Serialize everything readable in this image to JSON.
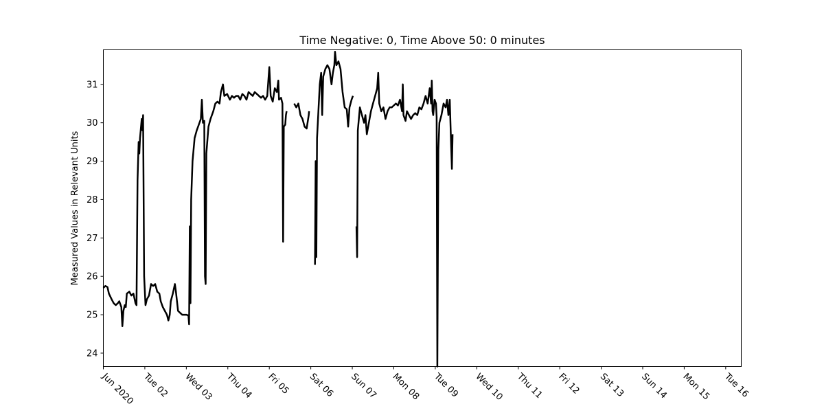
{
  "chart_data": {
    "type": "line",
    "title": "Time Negative: 0, Time Above 50: 0 minutes",
    "xlabel": "",
    "ylabel": "Measured Values in Relevant Units",
    "xlim": [
      "2020-06-01T00:00",
      "2020-06-16T09:00"
    ],
    "ylim": [
      23.65,
      31.9
    ],
    "grid": false,
    "legend": "none",
    "line_color": "#000000",
    "y_ticks": [
      24,
      25,
      26,
      27,
      28,
      29,
      30,
      31
    ],
    "x_ticks": [
      {
        "x": "2020-06-01T00:00",
        "label": "Jun 2020"
      },
      {
        "x": "2020-06-02T00:00",
        "label": "Tue 02"
      },
      {
        "x": "2020-06-03T00:00",
        "label": "Wed 03"
      },
      {
        "x": "2020-06-04T00:00",
        "label": "Thu 04"
      },
      {
        "x": "2020-06-05T00:00",
        "label": "Fri 05"
      },
      {
        "x": "2020-06-06T00:00",
        "label": "Sat 06"
      },
      {
        "x": "2020-06-07T00:00",
        "label": "Sun 07"
      },
      {
        "x": "2020-06-08T00:00",
        "label": "Mon 08"
      },
      {
        "x": "2020-06-09T00:00",
        "label": "Tue 09"
      },
      {
        "x": "2020-06-10T00:00",
        "label": "Wed 10"
      },
      {
        "x": "2020-06-11T00:00",
        "label": "Thu 11"
      },
      {
        "x": "2020-06-12T00:00",
        "label": "Fri 12"
      },
      {
        "x": "2020-06-13T00:00",
        "label": "Sat 13"
      },
      {
        "x": "2020-06-14T00:00",
        "label": "Sun 14"
      },
      {
        "x": "2020-06-15T00:00",
        "label": "Mon 15"
      },
      {
        "x": "2020-06-16T00:00",
        "label": "Tue 16"
      }
    ],
    "series": [
      {
        "points": [
          [
            "2020-06-01T00:00",
            25.7
          ],
          [
            "2020-06-01T01:12",
            25.75
          ],
          [
            "2020-06-01T02:24",
            25.72
          ],
          [
            "2020-06-01T03:12",
            25.55
          ],
          [
            "2020-06-01T04:48",
            25.4
          ],
          [
            "2020-06-01T06:00",
            25.3
          ],
          [
            "2020-06-01T07:12",
            25.25
          ],
          [
            "2020-06-01T08:24",
            25.3
          ],
          [
            "2020-06-01T09:12",
            25.35
          ],
          [
            "2020-06-01T10:24",
            25.2
          ],
          [
            "2020-06-01T11:00",
            24.7
          ],
          [
            "2020-06-01T11:36",
            25.1
          ],
          [
            "2020-06-01T12:24",
            25.25
          ],
          [
            "2020-06-01T13:00",
            25.2
          ],
          [
            "2020-06-01T13:36",
            25.55
          ],
          [
            "2020-06-01T15:00",
            25.6
          ],
          [
            "2020-06-01T16:12",
            25.5
          ],
          [
            "2020-06-01T17:24",
            25.55
          ],
          [
            "2020-06-01T18:36",
            25.3
          ],
          [
            "2020-06-01T19:12",
            25.25
          ],
          [
            "2020-06-01T19:48",
            28.5
          ],
          [
            "2020-06-01T20:24",
            29.5
          ],
          [
            "2020-06-01T20:48",
            29.2
          ],
          [
            "2020-06-01T21:12",
            29.6
          ],
          [
            "2020-06-01T21:48",
            29.9
          ],
          [
            "2020-06-01T22:12",
            30.1
          ],
          [
            "2020-06-01T22:36",
            29.8
          ],
          [
            "2020-06-01T23:00",
            30.2
          ],
          [
            "2020-06-01T23:36",
            26.0
          ],
          [
            "2020-06-02T00:24",
            25.25
          ],
          [
            "2020-06-02T01:12",
            25.4
          ],
          [
            "2020-06-02T02:24",
            25.5
          ],
          [
            "2020-06-02T03:36",
            25.8
          ],
          [
            "2020-06-02T04:48",
            25.75
          ],
          [
            "2020-06-02T06:00",
            25.8
          ],
          [
            "2020-06-02T07:12",
            25.6
          ],
          [
            "2020-06-02T08:24",
            25.55
          ],
          [
            "2020-06-02T09:12",
            25.35
          ],
          [
            "2020-06-02T10:24",
            25.2
          ],
          [
            "2020-06-02T11:36",
            25.1
          ],
          [
            "2020-06-02T12:48",
            25.0
          ],
          [
            "2020-06-02T13:36",
            24.85
          ],
          [
            "2020-06-02T14:24",
            25.0
          ],
          [
            "2020-06-02T15:00",
            25.35
          ],
          [
            "2020-06-02T16:12",
            25.55
          ],
          [
            "2020-06-02T17:24",
            25.8
          ],
          [
            "2020-06-02T18:00",
            25.6
          ],
          [
            "2020-06-02T19:12",
            25.1
          ],
          [
            "2020-06-02T20:24",
            25.05
          ],
          [
            "2020-06-02T21:36",
            25.0
          ],
          [
            "2020-06-02T22:48",
            25.0
          ],
          [
            "2020-06-03T00:00",
            25.0
          ],
          [
            "2020-06-03T01:12",
            24.98
          ],
          [
            "2020-06-03T01:36",
            24.75
          ],
          [
            "2020-06-03T02:00",
            27.3
          ],
          [
            "2020-06-03T02:24",
            25.3
          ],
          [
            "2020-06-03T02:48",
            28.0
          ],
          [
            "2020-06-03T03:36",
            29.0
          ],
          [
            "2020-06-03T04:48",
            29.6
          ],
          [
            "2020-06-03T06:00",
            29.8
          ],
          [
            "2020-06-03T07:12",
            29.95
          ],
          [
            "2020-06-03T08:24",
            30.1
          ],
          [
            "2020-06-03T09:00",
            30.6
          ],
          [
            "2020-06-03T09:36",
            30.0
          ],
          [
            "2020-06-03T10:24",
            30.05
          ],
          [
            "2020-06-03T10:48",
            26.0
          ],
          [
            "2020-06-03T11:12",
            25.8
          ],
          [
            "2020-06-03T11:36",
            29.2
          ],
          [
            "2020-06-03T12:48",
            29.9
          ],
          [
            "2020-06-03T14:00",
            30.1
          ],
          [
            "2020-06-03T15:36",
            30.3
          ],
          [
            "2020-06-03T16:48",
            30.5
          ],
          [
            "2020-06-03T18:00",
            30.55
          ],
          [
            "2020-06-03T19:12",
            30.5
          ],
          [
            "2020-06-03T20:00",
            30.8
          ],
          [
            "2020-06-03T21:12",
            31.0
          ],
          [
            "2020-06-03T22:00",
            30.7
          ],
          [
            "2020-06-03T23:36",
            30.75
          ],
          [
            "2020-06-04T01:12",
            30.6
          ],
          [
            "2020-06-04T02:24",
            30.7
          ],
          [
            "2020-06-04T03:36",
            30.65
          ],
          [
            "2020-06-04T04:48",
            30.7
          ],
          [
            "2020-06-04T06:00",
            30.7
          ],
          [
            "2020-06-04T07:12",
            30.6
          ],
          [
            "2020-06-04T08:24",
            30.75
          ],
          [
            "2020-06-04T09:36",
            30.7
          ],
          [
            "2020-06-04T10:48",
            30.6
          ],
          [
            "2020-06-04T12:00",
            30.8
          ],
          [
            "2020-06-04T13:12",
            30.75
          ],
          [
            "2020-06-04T14:24",
            30.7
          ],
          [
            "2020-06-04T15:36",
            30.8
          ],
          [
            "2020-06-04T16:48",
            30.75
          ],
          [
            "2020-06-04T18:00",
            30.7
          ],
          [
            "2020-06-04T19:12",
            30.65
          ],
          [
            "2020-06-04T20:24",
            30.7
          ],
          [
            "2020-06-04T21:36",
            30.6
          ],
          [
            "2020-06-04T22:48",
            30.7
          ],
          [
            "2020-06-05T00:00",
            31.45
          ],
          [
            "2020-06-05T00:48",
            30.7
          ],
          [
            "2020-06-05T02:00",
            30.55
          ],
          [
            "2020-06-05T03:12",
            30.9
          ],
          [
            "2020-06-05T04:24",
            30.8
          ],
          [
            "2020-06-05T05:12",
            31.1
          ],
          [
            "2020-06-05T05:36",
            30.6
          ],
          [
            "2020-06-05T06:48",
            30.65
          ],
          [
            "2020-06-05T07:36",
            30.5
          ],
          [
            "2020-06-05T08:00",
            26.9
          ],
          [
            "2020-06-05T08:24",
            29.9
          ],
          [
            "2020-06-05T09:12",
            29.95
          ],
          [
            "2020-06-05T09:36",
            30.2
          ],
          [
            "2020-06-05T10:00",
            30.3
          ],
          null,
          [
            "2020-06-05T14:24",
            30.5
          ],
          [
            "2020-06-05T15:36",
            30.4
          ],
          [
            "2020-06-05T16:48",
            30.5
          ],
          [
            "2020-06-05T18:00",
            30.2
          ],
          [
            "2020-06-05T19:12",
            30.1
          ],
          [
            "2020-06-05T20:24",
            29.9
          ],
          [
            "2020-06-05T21:36",
            29.85
          ],
          [
            "2020-06-05T22:48",
            30.2
          ],
          [
            "2020-06-05T23:00",
            30.3
          ],
          null,
          [
            "2020-06-06T02:24",
            26.3
          ],
          [
            "2020-06-06T02:48",
            29.0
          ],
          [
            "2020-06-06T03:12",
            26.5
          ],
          [
            "2020-06-06T03:36",
            29.6
          ],
          [
            "2020-06-06T04:24",
            30.3
          ],
          [
            "2020-06-06T05:12",
            31.0
          ],
          [
            "2020-06-06T06:00",
            31.3
          ],
          [
            "2020-06-06T06:36",
            30.2
          ],
          [
            "2020-06-06T07:12",
            31.2
          ],
          [
            "2020-06-06T08:24",
            31.4
          ],
          [
            "2020-06-06T09:36",
            31.5
          ],
          [
            "2020-06-06T10:48",
            31.4
          ],
          [
            "2020-06-06T12:00",
            31.0
          ],
          [
            "2020-06-06T12:48",
            31.3
          ],
          [
            "2020-06-06T13:36",
            31.5
          ],
          [
            "2020-06-06T14:00",
            31.85
          ],
          [
            "2020-06-06T14:48",
            31.5
          ],
          [
            "2020-06-06T16:00",
            31.6
          ],
          [
            "2020-06-06T17:12",
            31.4
          ],
          [
            "2020-06-06T18:24",
            30.8
          ],
          [
            "2020-06-06T19:36",
            30.4
          ],
          [
            "2020-06-06T20:48",
            30.35
          ],
          [
            "2020-06-06T21:36",
            29.9
          ],
          [
            "2020-06-06T22:24",
            30.4
          ],
          [
            "2020-06-06T23:36",
            30.6
          ],
          [
            "2020-06-07T00:24",
            30.7
          ],
          null,
          [
            "2020-06-07T02:24",
            27.3
          ],
          [
            "2020-06-07T02:48",
            26.5
          ],
          [
            "2020-06-07T03:12",
            29.8
          ],
          [
            "2020-06-07T04:24",
            30.4
          ],
          [
            "2020-06-07T05:36",
            30.2
          ],
          [
            "2020-06-07T06:48",
            30.0
          ],
          [
            "2020-06-07T07:36",
            30.2
          ],
          [
            "2020-06-07T08:24",
            29.7
          ],
          [
            "2020-06-07T09:36",
            30.0
          ],
          [
            "2020-06-07T10:48",
            30.3
          ],
          [
            "2020-06-07T12:00",
            30.5
          ],
          [
            "2020-06-07T13:12",
            30.7
          ],
          [
            "2020-06-07T14:24",
            30.9
          ],
          [
            "2020-06-07T15:00",
            31.3
          ],
          [
            "2020-06-07T15:36",
            30.5
          ],
          [
            "2020-06-07T16:48",
            30.3
          ],
          [
            "2020-06-07T18:00",
            30.4
          ],
          [
            "2020-06-07T19:12",
            30.1
          ],
          [
            "2020-06-07T20:24",
            30.3
          ],
          [
            "2020-06-07T21:36",
            30.4
          ],
          [
            "2020-06-07T22:48",
            30.4
          ],
          [
            "2020-06-08T00:00",
            30.45
          ],
          [
            "2020-06-08T01:12",
            30.5
          ],
          [
            "2020-06-08T02:24",
            30.45
          ],
          [
            "2020-06-08T03:36",
            30.6
          ],
          [
            "2020-06-08T04:48",
            30.3
          ],
          [
            "2020-06-08T05:12",
            31.0
          ],
          [
            "2020-06-08T05:36",
            30.2
          ],
          [
            "2020-06-08T06:48",
            30.05
          ],
          [
            "2020-06-08T07:36",
            30.3
          ],
          [
            "2020-06-08T08:48",
            30.2
          ],
          [
            "2020-06-08T10:00",
            30.1
          ],
          [
            "2020-06-08T11:12",
            30.2
          ],
          [
            "2020-06-08T12:24",
            30.25
          ],
          [
            "2020-06-08T13:36",
            30.2
          ],
          [
            "2020-06-08T14:48",
            30.4
          ],
          [
            "2020-06-08T16:00",
            30.35
          ],
          [
            "2020-06-08T17:12",
            30.5
          ],
          [
            "2020-06-08T18:24",
            30.7
          ],
          [
            "2020-06-08T19:36",
            30.5
          ],
          [
            "2020-06-08T20:48",
            30.9
          ],
          [
            "2020-06-08T21:36",
            30.5
          ],
          [
            "2020-06-08T22:00",
            31.1
          ],
          [
            "2020-06-08T22:24",
            30.3
          ],
          [
            "2020-06-08T22:48",
            30.2
          ],
          [
            "2020-06-08T23:36",
            30.6
          ],
          [
            "2020-06-09T00:24",
            30.5
          ],
          [
            "2020-06-09T00:48",
            30.15
          ],
          [
            "2020-06-09T01:12",
            23.65
          ],
          [
            "2020-06-09T01:48",
            29.3
          ],
          [
            "2020-06-09T02:24",
            30.0
          ],
          [
            "2020-06-09T03:36",
            30.2
          ],
          [
            "2020-06-09T04:48",
            30.5
          ],
          [
            "2020-06-09T06:00",
            30.4
          ],
          [
            "2020-06-09T06:48",
            30.6
          ],
          [
            "2020-06-09T07:36",
            30.2
          ],
          [
            "2020-06-09T08:24",
            30.6
          ],
          [
            "2020-06-09T09:12",
            29.4
          ],
          [
            "2020-06-09T09:36",
            28.8
          ],
          [
            "2020-06-09T10:00",
            29.7
          ]
        ]
      }
    ]
  }
}
